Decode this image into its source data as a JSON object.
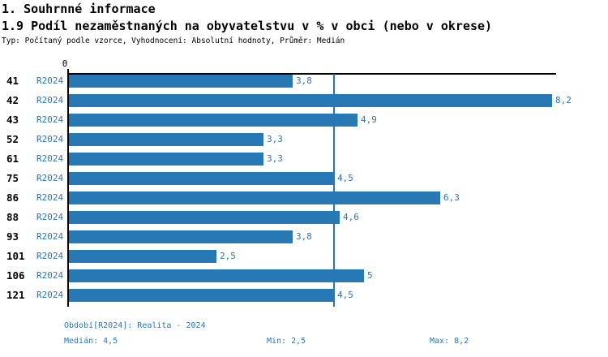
{
  "header": {
    "title1": "1. Souhrnné informace",
    "title2": "1.9 Podíl nezaměstnaných na obyvatelstvu v % v obci (nebo v okrese)",
    "subtitle": "Typ: Počítaný podle vzorce, Vyhodnocení: Absolutní hodnoty, Průměr: Medián"
  },
  "chart_data": {
    "type": "bar",
    "orientation": "horizontal",
    "origin_label": "0",
    "categories": [
      "41",
      "42",
      "43",
      "52",
      "61",
      "75",
      "86",
      "88",
      "93",
      "101",
      "106",
      "121"
    ],
    "series_label": "R2024",
    "values": [
      3.8,
      8.2,
      4.9,
      3.3,
      3.3,
      4.5,
      6.3,
      4.6,
      3.8,
      2.5,
      5,
      4.5
    ],
    "value_labels": [
      "3,8",
      "8,2",
      "4,9",
      "3,3",
      "3,3",
      "4,5",
      "6,3",
      "4,6",
      "3,8",
      "2,5",
      "5",
      "4,5"
    ],
    "xlim": [
      0,
      8.27
    ],
    "median_line": 4.5,
    "bar_color": "#2778b4",
    "grid": false,
    "legend": "none"
  },
  "footer": {
    "period": "Období[R2024]: Realita - 2024",
    "median": "Medián: 4,5",
    "min": "Min: 2,5",
    "max": "Max: 8,2"
  }
}
